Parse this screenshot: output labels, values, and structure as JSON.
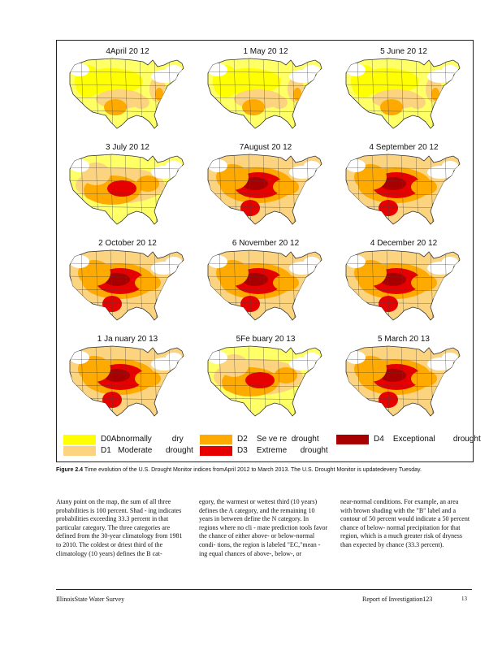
{
  "maps": [
    {
      "title": "4April    20 12",
      "level": 1
    },
    {
      "title": "1  May    20 12",
      "level": 1
    },
    {
      "title": "5  June    20 12",
      "level": 1
    },
    {
      "title": "3 July    20 12",
      "level": 2
    },
    {
      "title": "7August    20 12",
      "level": 3
    },
    {
      "title": "4  September    20 12",
      "level": 3
    },
    {
      "title": "2  October    20 12",
      "level": 3
    },
    {
      "title": "6  November    20 12",
      "level": 3
    },
    {
      "title": "4  December    20 12",
      "level": 3
    },
    {
      "title": "1 Ja nuary    20 13",
      "level": 3
    },
    {
      "title": "5Fe buary    20 13",
      "level": 2
    },
    {
      "title": "5  March    20 13",
      "level": 3
    }
  ],
  "legend": [
    {
      "label": "D0Abnormally         dry",
      "color": "#ffff00"
    },
    {
      "label": "D1   Moderate      drought",
      "color": "#fcd37f"
    },
    {
      "label": "D2    Se ve re  drought",
      "color": "#ffaa00"
    },
    {
      "label": "D3    Extreme      drought",
      "color": "#e60000"
    },
    {
      "label": "D4    Exceptional        drought",
      "color": "#a80000"
    }
  ],
  "caption": {
    "label": "Figure   2.4",
    "text": "Time     evolution      of the U.S.  Drought     Monitor   indices   fromApril     2012   to March   2013.  The  U.S.  Drought    Monitor     is updatedevery        Tuesday."
  },
  "body_columns": [
    "Atany point on the map,  the sum of all three probabilities is 100 percent. Shad - ing indicates probabilities exceeding 33.3 percent in that particular category. The three categories are defined from the 30-year climatology from 1981 to 2010. The coldest or driest third of the climatology (10 years) defines the B cat-",
    "egory, the warmest or wettest third (10 years) defines the A category, and the remaining 10 years in between define the N category. In regions where no cli - mate prediction tools favor the chance of either above- or below-normal condi- tions, the region is labeled \"EC,\"mean - ing equal chances of above-, below-, or",
    "near-normal conditions. For example, an area with brown shading with the \"B\" label and a contour of 50 percent would indicate a 50 percent chance of below- normal precipitation for that region, which is a much greater risk of dryness than expected by chance (33.3 percent)."
  ],
  "footer": {
    "left": "IllinoisState Water Survey",
    "right": "Report of Investigation123",
    "page": "13"
  }
}
